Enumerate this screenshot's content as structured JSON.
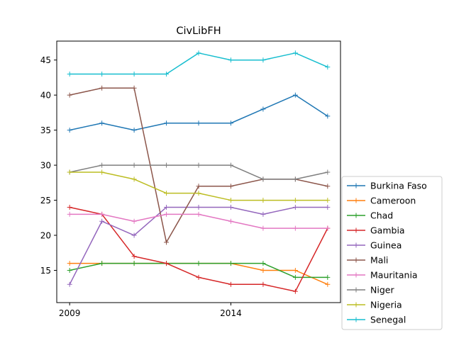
{
  "chart_data": {
    "type": "line",
    "title": "CivLibFH",
    "xlabel": "",
    "ylabel": "",
    "x": [
      2009,
      2010,
      2011,
      2012,
      2013,
      2014,
      2015,
      2016,
      2017
    ],
    "xticks": [
      2009,
      2014
    ],
    "xtick_labels": [
      "2009",
      "2014"
    ],
    "yticks": [
      15,
      20,
      25,
      30,
      35,
      40,
      45
    ],
    "ytick_labels": [
      "15",
      "20",
      "25",
      "30",
      "35",
      "40",
      "45"
    ],
    "xlim": [
      2008.6,
      2017.4
    ],
    "ylim": [
      10.4,
      47.7
    ],
    "grid": false,
    "legend_position": "outside-right-bottom",
    "marker": "+",
    "series": [
      {
        "name": "Burkina Faso",
        "color": "#1f77b4",
        "values": [
          35,
          36,
          35,
          36,
          36,
          36,
          38,
          40,
          37
        ]
      },
      {
        "name": "Cameroon",
        "color": "#ff7f0e",
        "values": [
          16,
          16,
          16,
          16,
          16,
          16,
          15,
          15,
          13
        ]
      },
      {
        "name": "Chad",
        "color": "#2ca02c",
        "values": [
          15,
          16,
          16,
          16,
          16,
          16,
          16,
          14,
          14
        ]
      },
      {
        "name": "Gambia",
        "color": "#d62728",
        "values": [
          24,
          23,
          17,
          16,
          14,
          13,
          13,
          12,
          21
        ]
      },
      {
        "name": "Guinea",
        "color": "#9467bd",
        "values": [
          13,
          22,
          20,
          24,
          24,
          24,
          23,
          24,
          24
        ]
      },
      {
        "name": "Mali",
        "color": "#8c564b",
        "values": [
          40,
          41,
          41,
          19,
          27,
          27,
          28,
          28,
          27
        ]
      },
      {
        "name": "Mauritania",
        "color": "#e377c2",
        "values": [
          23,
          23,
          22,
          23,
          23,
          22,
          21,
          21,
          21
        ]
      },
      {
        "name": "Niger",
        "color": "#7f7f7f",
        "values": [
          29,
          30,
          30,
          30,
          30,
          30,
          28,
          28,
          29
        ]
      },
      {
        "name": "Nigeria",
        "color": "#bcbd22",
        "values": [
          29,
          29,
          28,
          26,
          26,
          25,
          25,
          25,
          25
        ]
      },
      {
        "name": "Senegal",
        "color": "#17becf",
        "values": [
          43,
          43,
          43,
          43,
          46,
          45,
          45,
          46,
          44
        ]
      }
    ]
  }
}
